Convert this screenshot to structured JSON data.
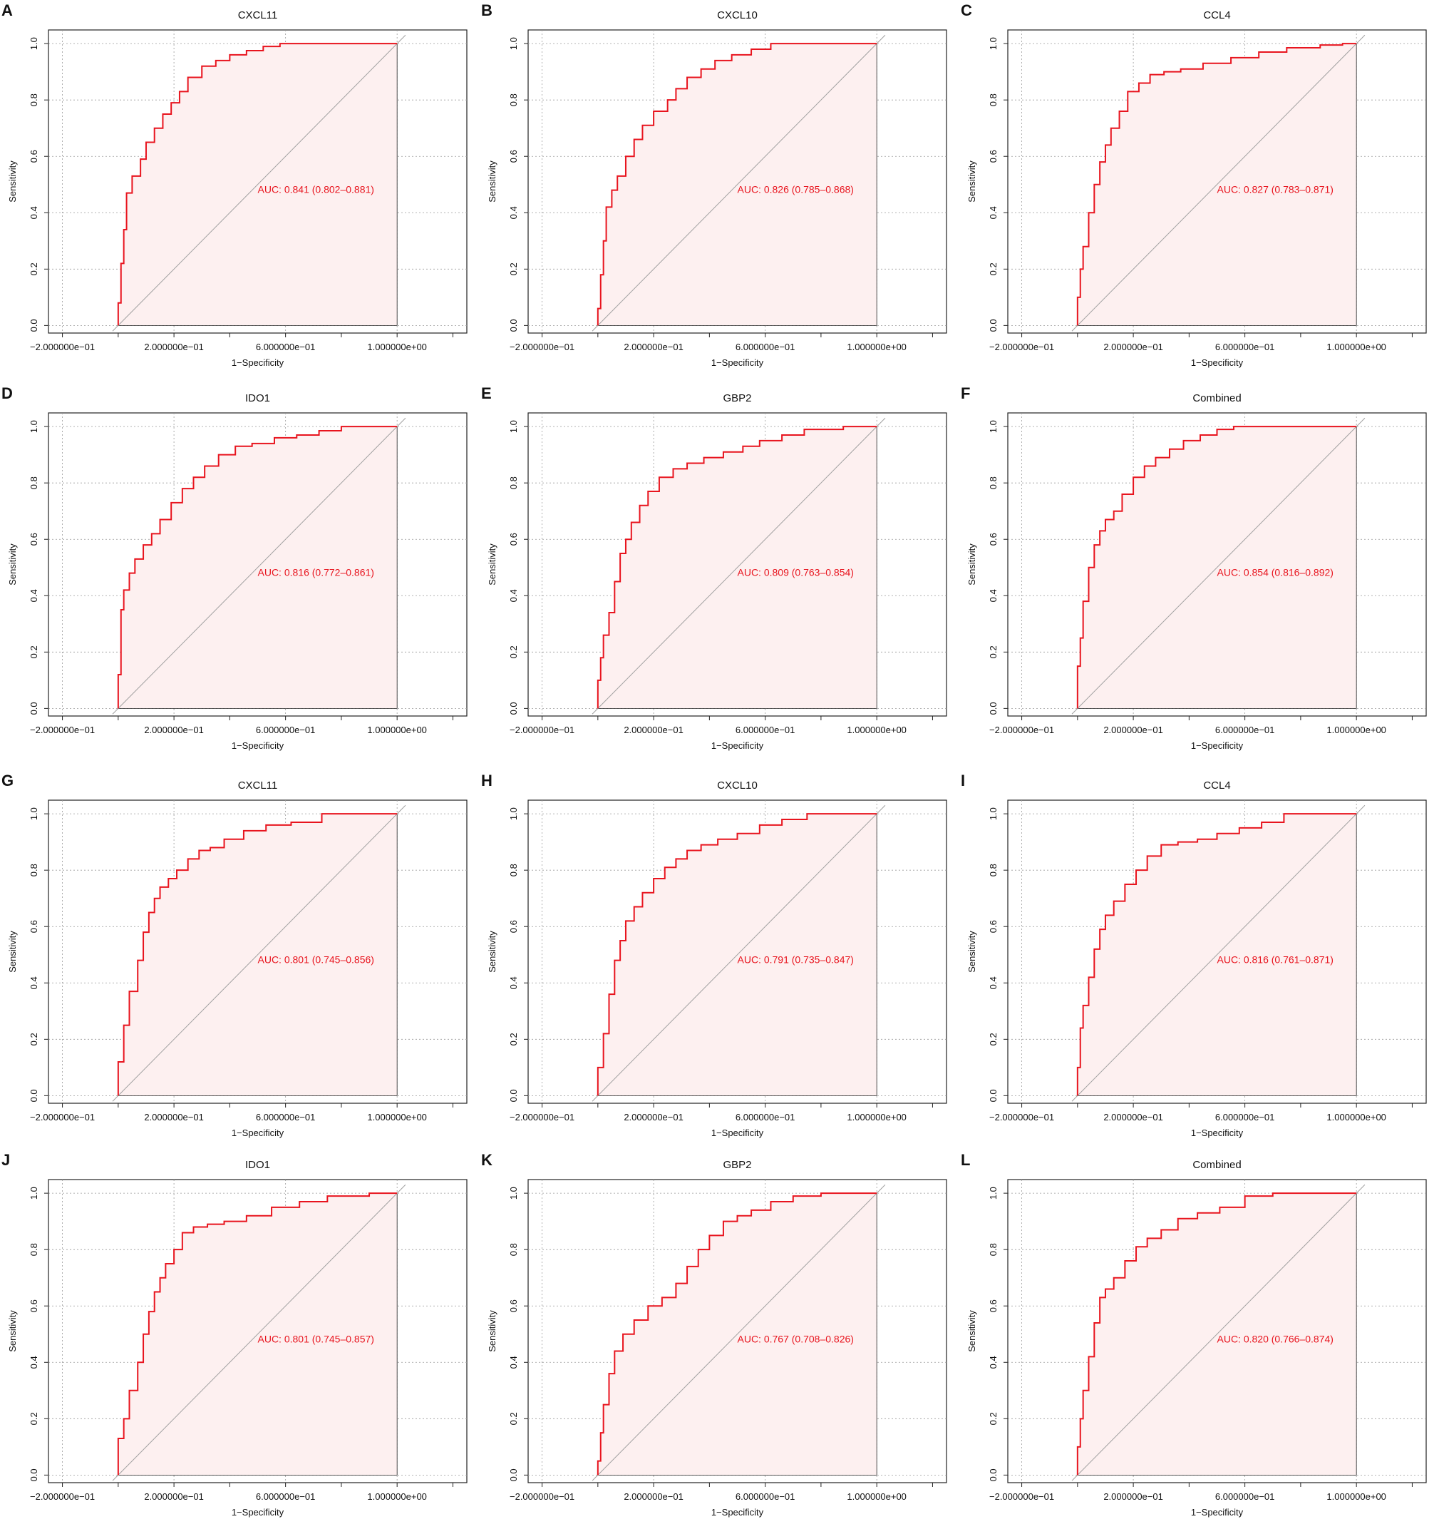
{
  "figure": {
    "panels": [
      {
        "label": "A",
        "title": "CXCL11",
        "auc_text": "AUC: 0.841 (0.802–0.881)",
        "xlabel": "1−Specificity",
        "ylabel": "Sensitivity"
      },
      {
        "label": "B",
        "title": "CXCL10",
        "auc_text": "AUC: 0.826 (0.785–0.868)",
        "xlabel": "1−Specificity",
        "ylabel": "Sensitivity"
      },
      {
        "label": "C",
        "title": "CCL4",
        "auc_text": "AUC: 0.827 (0.783–0.871)",
        "xlabel": "1−Specificity",
        "ylabel": "Sensitivity"
      },
      {
        "label": "D",
        "title": "IDO1",
        "auc_text": "AUC: 0.816 (0.772–0.861)",
        "xlabel": "1−Specificity",
        "ylabel": "Sensitivity"
      },
      {
        "label": "E",
        "title": "GBP2",
        "auc_text": "AUC: 0.809 (0.763–0.854)",
        "xlabel": "1−Specificity",
        "ylabel": "Sensitivity"
      },
      {
        "label": "F",
        "title": "Combined",
        "auc_text": "AUC: 0.854 (0.816–0.892)",
        "xlabel": "1−Specificity",
        "ylabel": "Sensitivity"
      },
      {
        "label": "G",
        "title": "CXCL11",
        "auc_text": "AUC: 0.801 (0.745–0.856)",
        "xlabel": "1−Specificity",
        "ylabel": "Sensitivity"
      },
      {
        "label": "H",
        "title": "CXCL10",
        "auc_text": "AUC: 0.791 (0.735–0.847)",
        "xlabel": "1−Specificity",
        "ylabel": "Sensitivity"
      },
      {
        "label": "I",
        "title": "CCL4",
        "auc_text": "AUC: 0.816 (0.761–0.871)",
        "xlabel": "1−Specificity",
        "ylabel": "Sensitivity"
      },
      {
        "label": "J",
        "title": "IDO1",
        "auc_text": "AUC: 0.801 (0.745–0.857)",
        "xlabel": "1−Specificity",
        "ylabel": "Sensitivity"
      },
      {
        "label": "K",
        "title": "GBP2",
        "auc_text": "AUC: 0.767 (0.708–0.826)",
        "xlabel": "1−Specificity",
        "ylabel": "Sensitivity"
      },
      {
        "label": "L",
        "title": "Combined",
        "auc_text": "AUC: 0.820 (0.766–0.874)",
        "xlabel": "1−Specificity",
        "ylabel": "Sensitivity"
      }
    ]
  },
  "colors": {
    "roc_line": "#e8141e",
    "auc_fill": "#fdf0f0",
    "auc_text": "#e8141e",
    "diagonal": "#a0a0a0",
    "grid": "#9a9a9a",
    "frame": "#222222"
  },
  "chart_data": [
    {
      "type": "line",
      "panel": "A",
      "title": "CXCL11",
      "xlabel": "1−Specificity",
      "ylabel": "Sensitivity",
      "x_ticks": [
        "−2.000000e−01",
        "2.000000e−01",
        "6.000000e−01",
        "1.000000e+00"
      ],
      "y_ticks": [
        "0.0",
        "0.2",
        "0.4",
        "0.6",
        "0.8",
        "1.0"
      ],
      "xlim": [
        -0.25,
        1.25
      ],
      "ylim": [
        0,
        1
      ],
      "grid": true,
      "auc": 0.841,
      "ci": [
        0.802,
        0.881
      ],
      "series": [
        {
          "x": [
            0,
            0.01,
            0.02,
            0.03,
            0.05,
            0.08,
            0.1,
            0.13,
            0.16,
            0.19,
            0.22,
            0.25,
            0.3,
            0.35,
            0.4,
            0.46,
            0.52,
            0.58,
            0.62,
            1.0
          ],
          "y": [
            0,
            0.08,
            0.22,
            0.34,
            0.47,
            0.53,
            0.59,
            0.65,
            0.7,
            0.75,
            0.79,
            0.83,
            0.88,
            0.92,
            0.94,
            0.96,
            0.975,
            0.99,
            1.0,
            1.0
          ]
        }
      ]
    },
    {
      "type": "line",
      "panel": "B",
      "title": "CXCL10",
      "xlabel": "1−Specificity",
      "ylabel": "Sensitivity",
      "x_ticks": [
        "−2.000000e−01",
        "2.000000e−01",
        "6.000000e−01",
        "1.000000e+00"
      ],
      "y_ticks": [
        "0.0",
        "0.2",
        "0.4",
        "0.6",
        "0.8",
        "1.0"
      ],
      "xlim": [
        -0.25,
        1.25
      ],
      "ylim": [
        0,
        1
      ],
      "grid": true,
      "auc": 0.826,
      "ci": [
        0.785,
        0.868
      ],
      "series": [
        {
          "x": [
            0,
            0.01,
            0.02,
            0.03,
            0.05,
            0.07,
            0.1,
            0.13,
            0.16,
            0.2,
            0.25,
            0.28,
            0.32,
            0.37,
            0.42,
            0.48,
            0.55,
            0.62,
            0.67,
            1.0
          ],
          "y": [
            0,
            0.06,
            0.18,
            0.3,
            0.42,
            0.48,
            0.53,
            0.6,
            0.66,
            0.71,
            0.76,
            0.8,
            0.84,
            0.88,
            0.91,
            0.94,
            0.96,
            0.98,
            1.0,
            1.0
          ]
        }
      ]
    },
    {
      "type": "line",
      "panel": "C",
      "title": "CCL4",
      "xlabel": "1−Specificity",
      "ylabel": "Sensitivity",
      "x_ticks": [
        "−2.000000e−01",
        "2.000000e−01",
        "6.000000e−01",
        "1.000000e+00"
      ],
      "y_ticks": [
        "0.0",
        "0.2",
        "0.4",
        "0.6",
        "0.8",
        "1.0"
      ],
      "xlim": [
        -0.25,
        1.25
      ],
      "ylim": [
        0,
        1
      ],
      "grid": true,
      "auc": 0.827,
      "ci": [
        0.783,
        0.871
      ],
      "series": [
        {
          "x": [
            0,
            0.01,
            0.02,
            0.04,
            0.06,
            0.08,
            0.1,
            0.12,
            0.15,
            0.18,
            0.22,
            0.26,
            0.31,
            0.37,
            0.45,
            0.55,
            0.65,
            0.75,
            0.87,
            0.95,
            1.0
          ],
          "y": [
            0,
            0.1,
            0.2,
            0.28,
            0.4,
            0.5,
            0.58,
            0.64,
            0.7,
            0.76,
            0.83,
            0.86,
            0.89,
            0.9,
            0.91,
            0.93,
            0.95,
            0.97,
            0.985,
            0.995,
            1.0
          ]
        }
      ]
    },
    {
      "type": "line",
      "panel": "D",
      "title": "IDO1",
      "xlabel": "1−Specificity",
      "ylabel": "Sensitivity",
      "x_ticks": [
        "−2.000000e−01",
        "2.000000e−01",
        "6.000000e−01",
        "1.000000e+00"
      ],
      "y_ticks": [
        "0.0",
        "0.2",
        "0.4",
        "0.6",
        "0.8",
        "1.0"
      ],
      "xlim": [
        -0.25,
        1.25
      ],
      "ylim": [
        0,
        1
      ],
      "grid": true,
      "auc": 0.816,
      "ci": [
        0.772,
        0.861
      ],
      "series": [
        {
          "x": [
            0,
            0.01,
            0.02,
            0.04,
            0.06,
            0.09,
            0.12,
            0.15,
            0.19,
            0.23,
            0.27,
            0.31,
            0.36,
            0.42,
            0.48,
            0.56,
            0.64,
            0.72,
            0.8,
            0.86,
            1.0
          ],
          "y": [
            0,
            0.12,
            0.35,
            0.42,
            0.48,
            0.53,
            0.58,
            0.62,
            0.67,
            0.73,
            0.78,
            0.82,
            0.86,
            0.9,
            0.93,
            0.94,
            0.96,
            0.97,
            0.985,
            1.0,
            1.0
          ]
        }
      ]
    },
    {
      "type": "line",
      "panel": "E",
      "title": "GBP2",
      "xlabel": "1−Specificity",
      "ylabel": "Sensitivity",
      "x_ticks": [
        "−2.000000e−01",
        "2.000000e−01",
        "6.000000e−01",
        "1.000000e+00"
      ],
      "y_ticks": [
        "0.0",
        "0.2",
        "0.4",
        "0.6",
        "0.8",
        "1.0"
      ],
      "xlim": [
        -0.25,
        1.25
      ],
      "ylim": [
        0,
        1
      ],
      "grid": true,
      "auc": 0.809,
      "ci": [
        0.763,
        0.854
      ],
      "series": [
        {
          "x": [
            0,
            0.01,
            0.02,
            0.04,
            0.06,
            0.08,
            0.1,
            0.12,
            0.15,
            0.18,
            0.22,
            0.27,
            0.32,
            0.38,
            0.45,
            0.52,
            0.58,
            0.66,
            0.74,
            0.88,
            1.0
          ],
          "y": [
            0,
            0.1,
            0.18,
            0.26,
            0.34,
            0.45,
            0.55,
            0.6,
            0.66,
            0.72,
            0.77,
            0.82,
            0.85,
            0.87,
            0.89,
            0.91,
            0.93,
            0.95,
            0.97,
            0.99,
            1.0
          ]
        }
      ]
    },
    {
      "type": "line",
      "panel": "F",
      "title": "Combined",
      "xlabel": "1−Specificity",
      "ylabel": "Sensitivity",
      "x_ticks": [
        "−2.000000e−01",
        "2.000000e−01",
        "6.000000e−01",
        "1.000000e+00"
      ],
      "y_ticks": [
        "0.0",
        "0.2",
        "0.4",
        "0.6",
        "0.8",
        "1.0"
      ],
      "xlim": [
        -0.25,
        1.25
      ],
      "ylim": [
        0,
        1
      ],
      "grid": true,
      "auc": 0.854,
      "ci": [
        0.816,
        0.892
      ],
      "series": [
        {
          "x": [
            0,
            0.01,
            0.02,
            0.04,
            0.06,
            0.08,
            0.1,
            0.13,
            0.16,
            0.2,
            0.24,
            0.28,
            0.33,
            0.38,
            0.44,
            0.5,
            0.56,
            0.62,
            1.0
          ],
          "y": [
            0,
            0.15,
            0.25,
            0.38,
            0.5,
            0.58,
            0.63,
            0.67,
            0.7,
            0.76,
            0.82,
            0.86,
            0.89,
            0.92,
            0.95,
            0.97,
            0.99,
            1.0,
            1.0
          ]
        }
      ]
    },
    {
      "type": "line",
      "panel": "G",
      "title": "CXCL11",
      "xlabel": "1−Specificity",
      "ylabel": "Sensitivity",
      "x_ticks": [
        "−2.000000e−01",
        "2.000000e−01",
        "6.000000e−01",
        "1.000000e+00"
      ],
      "y_ticks": [
        "0.0",
        "0.2",
        "0.4",
        "0.6",
        "0.8",
        "1.0"
      ],
      "xlim": [
        -0.25,
        1.25
      ],
      "ylim": [
        0,
        1
      ],
      "grid": true,
      "auc": 0.801,
      "ci": [
        0.745,
        0.856
      ],
      "series": [
        {
          "x": [
            0,
            0.02,
            0.04,
            0.07,
            0.09,
            0.11,
            0.13,
            0.15,
            0.18,
            0.21,
            0.25,
            0.29,
            0.33,
            0.38,
            0.45,
            0.53,
            0.62,
            0.73,
            0.87,
            1.0
          ],
          "y": [
            0,
            0.12,
            0.25,
            0.37,
            0.48,
            0.58,
            0.65,
            0.7,
            0.74,
            0.77,
            0.8,
            0.84,
            0.87,
            0.88,
            0.91,
            0.94,
            0.96,
            0.97,
            1.0,
            1.0
          ]
        }
      ]
    },
    {
      "type": "line",
      "panel": "H",
      "title": "CXCL10",
      "xlabel": "1−Specificity",
      "ylabel": "Sensitivity",
      "x_ticks": [
        "−2.000000e−01",
        "2.000000e−01",
        "6.000000e−01",
        "1.000000e+00"
      ],
      "y_ticks": [
        "0.0",
        "0.2",
        "0.4",
        "0.6",
        "0.8",
        "1.0"
      ],
      "xlim": [
        -0.25,
        1.25
      ],
      "ylim": [
        0,
        1
      ],
      "grid": true,
      "auc": 0.791,
      "ci": [
        0.735,
        0.847
      ],
      "series": [
        {
          "x": [
            0,
            0.02,
            0.04,
            0.06,
            0.08,
            0.1,
            0.13,
            0.16,
            0.2,
            0.24,
            0.28,
            0.32,
            0.37,
            0.43,
            0.5,
            0.58,
            0.66,
            0.75,
            0.85,
            1.0
          ],
          "y": [
            0,
            0.1,
            0.22,
            0.36,
            0.48,
            0.55,
            0.62,
            0.67,
            0.72,
            0.77,
            0.81,
            0.84,
            0.87,
            0.89,
            0.91,
            0.93,
            0.96,
            0.98,
            1.0,
            1.0
          ]
        }
      ]
    },
    {
      "type": "line",
      "panel": "I",
      "title": "CCL4",
      "xlabel": "1−Specificity",
      "ylabel": "Sensitivity",
      "x_ticks": [
        "−2.000000e−01",
        "2.000000e−01",
        "6.000000e−01",
        "1.000000e+00"
      ],
      "y_ticks": [
        "0.0",
        "0.2",
        "0.4",
        "0.6",
        "0.8",
        "1.0"
      ],
      "xlim": [
        -0.25,
        1.25
      ],
      "ylim": [
        0,
        1
      ],
      "grid": true,
      "auc": 0.816,
      "ci": [
        0.761,
        0.871
      ],
      "series": [
        {
          "x": [
            0,
            0.01,
            0.02,
            0.04,
            0.06,
            0.08,
            0.1,
            0.13,
            0.17,
            0.21,
            0.25,
            0.3,
            0.36,
            0.43,
            0.5,
            0.58,
            0.66,
            0.74,
            0.83,
            1.0
          ],
          "y": [
            0,
            0.1,
            0.24,
            0.32,
            0.42,
            0.52,
            0.59,
            0.64,
            0.69,
            0.75,
            0.8,
            0.85,
            0.89,
            0.9,
            0.91,
            0.93,
            0.95,
            0.97,
            1.0,
            1.0
          ]
        }
      ]
    },
    {
      "type": "line",
      "panel": "J",
      "title": "IDO1",
      "xlabel": "1−Specificity",
      "ylabel": "Sensitivity",
      "x_ticks": [
        "−2.000000e−01",
        "2.000000e−01",
        "6.000000e−01",
        "1.000000e+00"
      ],
      "y_ticks": [
        "0.0",
        "0.2",
        "0.4",
        "0.6",
        "0.8",
        "1.0"
      ],
      "xlim": [
        -0.25,
        1.25
      ],
      "ylim": [
        0,
        1
      ],
      "grid": true,
      "auc": 0.801,
      "ci": [
        0.745,
        0.857
      ],
      "series": [
        {
          "x": [
            0,
            0.02,
            0.04,
            0.07,
            0.09,
            0.11,
            0.13,
            0.15,
            0.17,
            0.2,
            0.23,
            0.27,
            0.32,
            0.38,
            0.46,
            0.55,
            0.65,
            0.75,
            0.9,
            1.0
          ],
          "y": [
            0,
            0.13,
            0.2,
            0.3,
            0.4,
            0.5,
            0.58,
            0.65,
            0.7,
            0.75,
            0.8,
            0.86,
            0.88,
            0.89,
            0.9,
            0.92,
            0.95,
            0.97,
            0.99,
            1.0
          ]
        }
      ]
    },
    {
      "type": "line",
      "panel": "K",
      "title": "GBP2",
      "xlabel": "1−Specificity",
      "ylabel": "Sensitivity",
      "x_ticks": [
        "−2.000000e−01",
        "2.000000e−01",
        "6.000000e−01",
        "1.000000e+00"
      ],
      "y_ticks": [
        "0.0",
        "0.2",
        "0.4",
        "0.6",
        "0.8",
        "1.0"
      ],
      "xlim": [
        -0.25,
        1.25
      ],
      "ylim": [
        0,
        1
      ],
      "grid": true,
      "auc": 0.767,
      "ci": [
        0.708,
        0.826
      ],
      "series": [
        {
          "x": [
            0,
            0.01,
            0.02,
            0.04,
            0.06,
            0.09,
            0.13,
            0.18,
            0.23,
            0.28,
            0.32,
            0.36,
            0.4,
            0.45,
            0.5,
            0.55,
            0.62,
            0.7,
            0.8,
            0.85,
            1.0
          ],
          "y": [
            0,
            0.05,
            0.15,
            0.25,
            0.36,
            0.44,
            0.5,
            0.55,
            0.6,
            0.63,
            0.68,
            0.74,
            0.8,
            0.85,
            0.9,
            0.92,
            0.94,
            0.97,
            0.99,
            1.0,
            1.0
          ]
        }
      ]
    },
    {
      "type": "line",
      "panel": "L",
      "title": "Combined",
      "xlabel": "1−Specificity",
      "ylabel": "Sensitivity",
      "x_ticks": [
        "−2.000000e−01",
        "2.000000e−01",
        "6.000000e−01",
        "1.000000e+00"
      ],
      "y_ticks": [
        "0.0",
        "0.2",
        "0.4",
        "0.6",
        "0.8",
        "1.0"
      ],
      "xlim": [
        -0.25,
        1.25
      ],
      "ylim": [
        0,
        1
      ],
      "grid": true,
      "auc": 0.82,
      "ci": [
        0.766,
        0.874
      ],
      "series": [
        {
          "x": [
            0,
            0.01,
            0.02,
            0.04,
            0.06,
            0.08,
            0.1,
            0.13,
            0.17,
            0.21,
            0.25,
            0.3,
            0.36,
            0.43,
            0.51,
            0.6,
            0.7,
            0.8,
            1.0
          ],
          "y": [
            0,
            0.1,
            0.2,
            0.3,
            0.42,
            0.54,
            0.63,
            0.66,
            0.7,
            0.76,
            0.81,
            0.84,
            0.87,
            0.91,
            0.93,
            0.95,
            0.99,
            1.0,
            1.0
          ]
        }
      ]
    }
  ]
}
